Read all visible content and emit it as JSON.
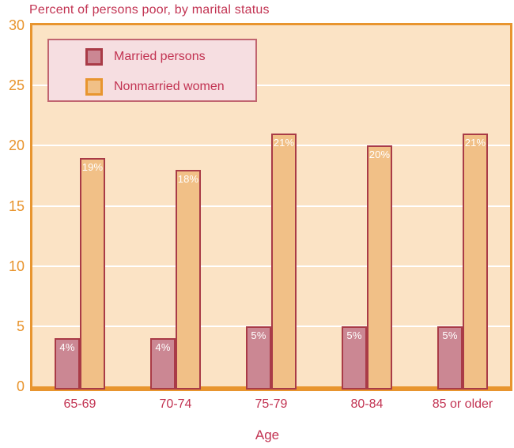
{
  "chart_data": {
    "type": "bar",
    "title": "Percent of persons poor, by marital status",
    "xlabel": "Age",
    "ylabel": "",
    "categories": [
      "65-69",
      "70-74",
      "75-79",
      "80-84",
      "85 or older"
    ],
    "series": [
      {
        "name": "Married persons",
        "values": [
          4,
          4,
          5,
          5,
          5
        ],
        "labels": [
          "4%",
          "4%",
          "5%",
          "5%",
          "5%"
        ],
        "fill": "#CB8793",
        "border": "#A93B47",
        "swatch_border": "#A93B47"
      },
      {
        "name": "Nonmarried women",
        "values": [
          19,
          18,
          21,
          20,
          21
        ],
        "labels": [
          "19%",
          "18%",
          "21%",
          "20%",
          "21%"
        ],
        "fill": "#F1C087",
        "border": "#A93B47",
        "swatch_border": "#E8952F"
      }
    ],
    "ylim": [
      0,
      30
    ],
    "yticks": [
      0,
      5,
      10,
      15,
      20,
      25,
      30
    ],
    "gridlines": [
      5,
      10,
      15,
      20,
      25
    ],
    "grid": "on",
    "legend_position": "top-left-inside",
    "colors": {
      "title_text": "#C23352",
      "axis_orange": "#E8952F",
      "plot_bg": "#FBE3C5",
      "grid_white": "#FFFFFF",
      "bar_label": "#FFFFFF",
      "legend_bg": "#F6DEE1",
      "legend_border": "#C16570",
      "tick_text": "#E8942D",
      "xtick_text": "#C23352"
    }
  }
}
